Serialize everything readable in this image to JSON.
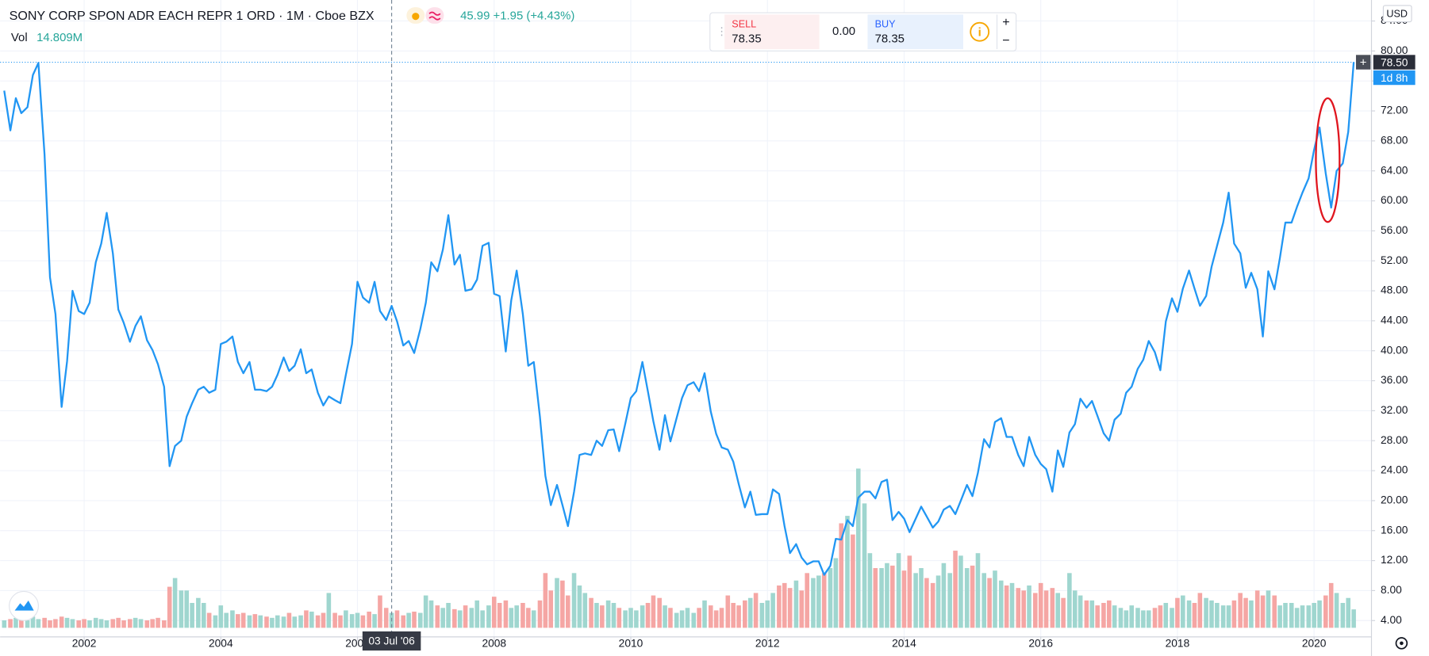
{
  "header": {
    "symbol": "SONY CORP SPON ADR EACH REPR 1 ORD · 1M · Cboe BZX",
    "quote": "45.99 +1.95 (+4.43%)"
  },
  "trade_panel": {
    "sell_label": "SELL",
    "sell_price": "78.35",
    "spread": "0.00",
    "buy_label": "BUY",
    "buy_price": "78.35"
  },
  "chart_data": {
    "type": "line",
    "color": "#2196f3",
    "currency": "USD",
    "countdown": "1d 8h",
    "xlim": [
      2000.77,
      2020.84
    ],
    "ylim": [
      1.82,
      86.8
    ],
    "xticks": [
      2002,
      2004,
      2006,
      2008,
      2010,
      2012,
      2014,
      2016,
      2018,
      2020
    ],
    "yticks": [
      {
        "value": 4,
        "label": "4.00"
      },
      {
        "value": 8,
        "label": "8.00"
      },
      {
        "value": 12,
        "label": "12.00"
      },
      {
        "value": 16,
        "label": "16.00"
      },
      {
        "value": 20,
        "label": "20.00"
      },
      {
        "value": 24,
        "label": "24.00"
      },
      {
        "value": 28,
        "label": "28.00"
      },
      {
        "value": 32,
        "label": "32.00"
      },
      {
        "value": 36,
        "label": "36.00"
      },
      {
        "value": 40,
        "label": "40.00"
      },
      {
        "value": 44,
        "label": "44.00"
      },
      {
        "value": 48,
        "label": "48.00"
      },
      {
        "value": 52,
        "label": "52.00"
      },
      {
        "value": 56,
        "label": "56.00"
      },
      {
        "value": 60,
        "label": "60.00"
      },
      {
        "value": 64,
        "label": "64.00"
      },
      {
        "value": 68,
        "label": "68.00"
      },
      {
        "value": 72,
        "label": "72.00"
      },
      {
        "value": 76,
        "label": "76.00"
      },
      {
        "value": 80,
        "label": "80.00"
      },
      {
        "value": 84,
        "label": "84.00"
      }
    ],
    "grid": true,
    "last_price": {
      "value": 78.5,
      "label": "78.50"
    },
    "crosshair": {
      "x": 2006.5,
      "label": "03 Jul '06"
    },
    "x": [
      2000.83,
      2000.92,
      2001.0,
      2001.08,
      2001.17,
      2001.25,
      2001.33,
      2001.42,
      2001.5,
      2001.58,
      2001.67,
      2001.75,
      2001.83,
      2001.92,
      2002.0,
      2002.08,
      2002.17,
      2002.25,
      2002.33,
      2002.42,
      2002.5,
      2002.58,
      2002.67,
      2002.75,
      2002.83,
      2002.92,
      2003.0,
      2003.08,
      2003.17,
      2003.25,
      2003.33,
      2003.42,
      2003.5,
      2003.58,
      2003.67,
      2003.75,
      2003.83,
      2003.92,
      2004.0,
      2004.08,
      2004.17,
      2004.25,
      2004.33,
      2004.42,
      2004.5,
      2004.58,
      2004.67,
      2004.75,
      2004.83,
      2004.92,
      2005.0,
      2005.08,
      2005.17,
      2005.25,
      2005.33,
      2005.42,
      2005.5,
      2005.58,
      2005.67,
      2005.75,
      2005.83,
      2005.92,
      2006.0,
      2006.08,
      2006.17,
      2006.25,
      2006.33,
      2006.42,
      2006.5,
      2006.58,
      2006.67,
      2006.75,
      2006.83,
      2006.92,
      2007.0,
      2007.08,
      2007.17,
      2007.25,
      2007.33,
      2007.42,
      2007.5,
      2007.58,
      2007.67,
      2007.75,
      2007.83,
      2007.92,
      2008.0,
      2008.08,
      2008.17,
      2008.25,
      2008.33,
      2008.42,
      2008.5,
      2008.58,
      2008.67,
      2008.75,
      2008.83,
      2008.92,
      2009.0,
      2009.08,
      2009.17,
      2009.25,
      2009.33,
      2009.42,
      2009.5,
      2009.58,
      2009.67,
      2009.75,
      2009.83,
      2009.92,
      2010.0,
      2010.08,
      2010.17,
      2010.25,
      2010.33,
      2010.42,
      2010.5,
      2010.58,
      2010.67,
      2010.75,
      2010.83,
      2010.92,
      2011.0,
      2011.08,
      2011.17,
      2011.25,
      2011.33,
      2011.42,
      2011.5,
      2011.58,
      2011.67,
      2011.75,
      2011.83,
      2011.92,
      2012.0,
      2012.08,
      2012.17,
      2012.25,
      2012.33,
      2012.42,
      2012.5,
      2012.58,
      2012.67,
      2012.75,
      2012.83,
      2012.92,
      2013.0,
      2013.08,
      2013.17,
      2013.25,
      2013.33,
      2013.42,
      2013.5,
      2013.58,
      2013.67,
      2013.75,
      2013.83,
      2013.92,
      2014.0,
      2014.08,
      2014.17,
      2014.25,
      2014.33,
      2014.42,
      2014.5,
      2014.58,
      2014.67,
      2014.75,
      2014.83,
      2014.92,
      2015.0,
      2015.08,
      2015.17,
      2015.25,
      2015.33,
      2015.42,
      2015.5,
      2015.58,
      2015.67,
      2015.75,
      2015.83,
      2015.92,
      2016.0,
      2016.08,
      2016.17,
      2016.25,
      2016.33,
      2016.42,
      2016.5,
      2016.58,
      2016.67,
      2016.75,
      2016.83,
      2016.92,
      2017.0,
      2017.08,
      2017.17,
      2017.25,
      2017.33,
      2017.42,
      2017.5,
      2017.58,
      2017.67,
      2017.75,
      2017.83,
      2017.92,
      2018.0,
      2018.08,
      2018.17,
      2018.25,
      2018.33,
      2018.42,
      2018.5,
      2018.58,
      2018.67,
      2018.75,
      2018.83,
      2018.92,
      2019.0,
      2019.08,
      2019.17,
      2019.25,
      2019.33,
      2019.42,
      2019.5,
      2019.58,
      2019.67,
      2019.75,
      2019.83,
      2019.92,
      2020.0,
      2020.08,
      2020.17,
      2020.25,
      2020.33,
      2020.42,
      2020.5,
      2020.58
    ],
    "values": [
      74.7,
      69.4,
      73.7,
      71.7,
      72.5,
      76.8,
      78.4,
      66.2,
      49.8,
      44.9,
      32.5,
      38.6,
      48,
      45.3,
      44.9,
      46.4,
      51.8,
      54.3,
      58.4,
      53,
      45.5,
      43.7,
      41.2,
      43.3,
      44.6,
      41.4,
      40.1,
      38.2,
      35.2,
      24.6,
      27.3,
      28,
      31.2,
      33,
      34.8,
      35.2,
      34.4,
      34.8,
      40.9,
      41.2,
      41.9,
      38.5,
      37,
      38.5,
      34.8,
      34.8,
      34.6,
      35.2,
      36.8,
      39.1,
      37.3,
      38,
      40.2,
      37,
      37.5,
      34.4,
      32.7,
      33.9,
      33.4,
      33,
      36.8,
      40.9,
      49.2,
      47.1,
      46.4,
      49.2,
      45.3,
      44.1,
      45.99,
      43.9,
      40.7,
      41.3,
      39.7,
      42.9,
      46.4,
      51.8,
      50.6,
      53.5,
      58.1,
      51.5,
      52.8,
      48,
      48.2,
      49.5,
      54,
      54.4,
      47.6,
      47.3,
      39.9,
      46.7,
      50.7,
      44.9,
      38,
      38.5,
      31.2,
      23.3,
      19.4,
      22.1,
      19.4,
      16.6,
      21.2,
      26.1,
      26.3,
      26.1,
      28,
      27.3,
      29.4,
      29.5,
      26.6,
      30.3,
      33.7,
      34.6,
      38.5,
      34.6,
      30.6,
      26.8,
      31.4,
      27.9,
      31,
      33.7,
      35.4,
      35.8,
      34.6,
      37,
      31.9,
      28.9,
      27.1,
      26.8,
      25.2,
      22.2,
      19.1,
      21.2,
      18.1,
      18.2,
      18.2,
      21.5,
      20.9,
      16.6,
      13,
      14.2,
      12.4,
      11.5,
      11.9,
      11.9,
      10.1,
      11.3,
      14.9,
      14.8,
      17.4,
      16.6,
      20.4,
      21.2,
      21.2,
      20.3,
      22.5,
      22.8,
      17.4,
      18.5,
      17.6,
      15.8,
      17.6,
      19.2,
      17.9,
      16.4,
      17.2,
      18.8,
      19.3,
      18.2,
      20,
      22.1,
      20.6,
      23.7,
      28.2,
      27.1,
      30.5,
      31,
      28.5,
      28.5,
      26.1,
      24.6,
      28.5,
      26.1,
      24.9,
      24.2,
      21.2,
      26.7,
      24.5,
      29.1,
      30.2,
      33.6,
      32.4,
      33.3,
      31.3,
      29,
      28,
      30.8,
      31.6,
      34.4,
      35.2,
      37.6,
      38.8,
      41.3,
      39.8,
      37.4,
      43.9,
      47,
      45.2,
      48.3,
      50.7,
      48.3,
      46,
      47.3,
      51.2,
      54,
      57.1,
      61.1,
      54.3,
      53,
      48.4,
      50.4,
      48.2,
      41.9,
      50.6,
      48.2,
      52.4,
      57.1,
      57.1,
      59.2,
      61.1,
      63,
      66.8,
      69.8,
      63.7,
      59.1,
      64,
      65,
      69.2,
      78.5
    ],
    "volume": {
      "name": "Vol",
      "last_label": "14.809M",
      "up_color": "#9fd6cf",
      "down_color": "#f5a6a4",
      "values": [
        6,
        7,
        8,
        7,
        6,
        9,
        7,
        8,
        6,
        7,
        9,
        8,
        7,
        6,
        7,
        6,
        8,
        7,
        6,
        7,
        8,
        6,
        7,
        8,
        7,
        6,
        7,
        8,
        6,
        33,
        40,
        30,
        30,
        20,
        24,
        20,
        12,
        10,
        18,
        12,
        14,
        11,
        12,
        10,
        11,
        10,
        9,
        8,
        10,
        9,
        12,
        9,
        10,
        14,
        13,
        10,
        12,
        28,
        12,
        10,
        14,
        11,
        12,
        10,
        13,
        11,
        26,
        16,
        12,
        14,
        10,
        12,
        13,
        12,
        26,
        22,
        18,
        16,
        20,
        15,
        14,
        18,
        16,
        22,
        14,
        18,
        25,
        20,
        22,
        16,
        18,
        20,
        16,
        14,
        22,
        44,
        30,
        40,
        38,
        26,
        44,
        34,
        28,
        24,
        20,
        18,
        22,
        20,
        16,
        14,
        16,
        14,
        18,
        20,
        26,
        24,
        18,
        16,
        12,
        14,
        16,
        12,
        16,
        22,
        18,
        14,
        16,
        26,
        20,
        18,
        22,
        24,
        28,
        20,
        22,
        28,
        34,
        36,
        32,
        38,
        30,
        44,
        40,
        42,
        44,
        48,
        56,
        84,
        90,
        75,
        128,
        100,
        60,
        48,
        48,
        52,
        50,
        60,
        46,
        58,
        44,
        48,
        40,
        36,
        42,
        52,
        44,
        62,
        58,
        48,
        50,
        60,
        44,
        40,
        46,
        38,
        34,
        36,
        32,
        30,
        34,
        28,
        36,
        30,
        32,
        28,
        24,
        44,
        30,
        26,
        22,
        22,
        18,
        20,
        22,
        18,
        16,
        14,
        18,
        16,
        14,
        14,
        16,
        18,
        20,
        16,
        24,
        26,
        22,
        20,
        28,
        24,
        22,
        20,
        18,
        18,
        22,
        28,
        24,
        22,
        30,
        26,
        30,
        26,
        18,
        20,
        20,
        16,
        18,
        18,
        20,
        22,
        26,
        36,
        28,
        20,
        24,
        14.809
      ]
    }
  }
}
